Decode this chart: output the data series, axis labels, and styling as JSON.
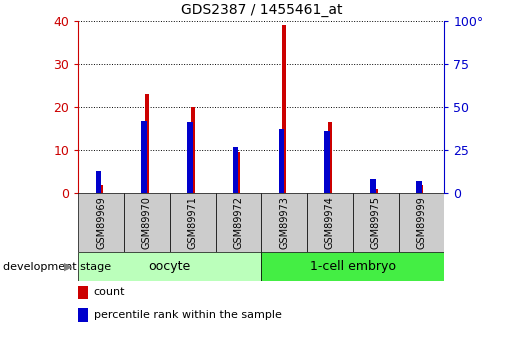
{
  "title": "GDS2387 / 1455461_at",
  "samples": [
    "GSM89969",
    "GSM89970",
    "GSM89971",
    "GSM89972",
    "GSM89973",
    "GSM89974",
    "GSM89975",
    "GSM89999"
  ],
  "count_values": [
    2,
    23,
    20,
    9.5,
    39,
    16.5,
    1,
    2
  ],
  "percentile_values": [
    13,
    42,
    41,
    27,
    37,
    36,
    8,
    7
  ],
  "groups": [
    {
      "label": "oocyte",
      "indices": [
        0,
        1,
        2,
        3
      ],
      "color": "#aaffaa"
    },
    {
      "label": "1-cell embryo",
      "indices": [
        4,
        5,
        6,
        7
      ],
      "color": "#44ee44"
    }
  ],
  "ylim_left": [
    0,
    40
  ],
  "ylim_right": [
    0,
    100
  ],
  "yticks_left": [
    0,
    10,
    20,
    30,
    40
  ],
  "yticks_right": [
    0,
    25,
    50,
    75,
    100
  ],
  "yticklabels_right": [
    "0",
    "25",
    "50",
    "75",
    "100°"
  ],
  "count_color": "#cc0000",
  "percentile_color": "#0000cc",
  "background_color": "#ffffff",
  "plot_bg_color": "#ffffff",
  "grid_color": "black",
  "dev_stage_label": "development stage",
  "legend_count": "count",
  "legend_percentile": "percentile rank within the sample",
  "xtick_bg_color": "#cccccc",
  "oocyte_color": "#bbffbb",
  "embryo_color": "#44ee44"
}
